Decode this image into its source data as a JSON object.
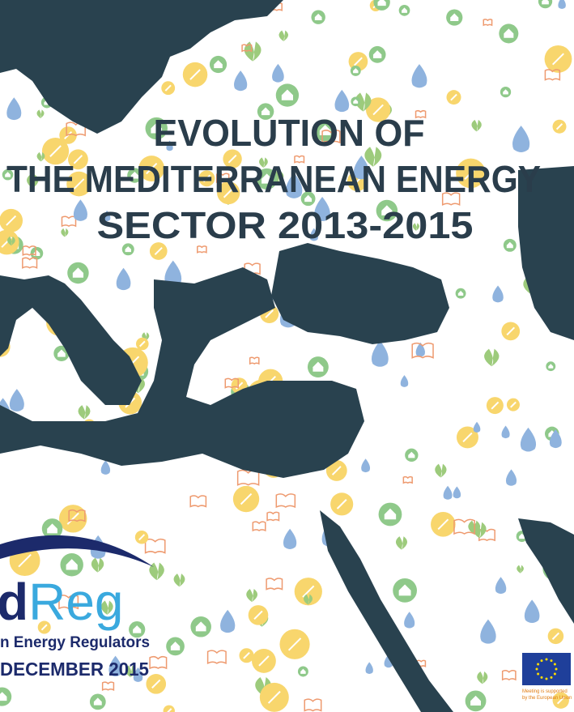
{
  "cover": {
    "title": [
      "EVOLUTION OF",
      "THE MEDITERRANEAN ENERGY",
      "SECTOR 2013-2015"
    ],
    "logo": {
      "dark": "d",
      "light": "Reg",
      "tagline": "n Energy Regulators"
    },
    "date": "DECEMBER 2015",
    "eu_note": [
      "Meeting is supported",
      "by the European Union"
    ]
  }
}
